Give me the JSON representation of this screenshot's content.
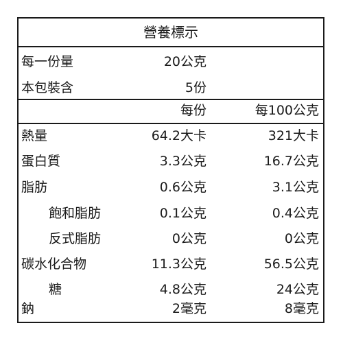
{
  "title": "營養標示",
  "serving": {
    "size_label": "每一份量",
    "size_value": "20公克",
    "count_label": "本包裝含",
    "count_value": "5份"
  },
  "columns": {
    "per_serving": "每份",
    "per_100g": "每100公克"
  },
  "nutrients": [
    {
      "name": "熱量",
      "per_serving": "64.2大卡",
      "per_100g": "321大卡",
      "indent": false
    },
    {
      "name": "蛋白質",
      "per_serving": "3.3公克",
      "per_100g": "16.7公克",
      "indent": false
    },
    {
      "name": "脂肪",
      "per_serving": "0.6公克",
      "per_100g": "3.1公克",
      "indent": false
    },
    {
      "name": "飽和脂肪",
      "per_serving": "0.1公克",
      "per_100g": "0.4公克",
      "indent": true
    },
    {
      "name": "反式脂肪",
      "per_serving": "0公克",
      "per_100g": "0公克",
      "indent": true
    },
    {
      "name": "碳水化合物",
      "per_serving": "11.3公克",
      "per_100g": "56.5公克",
      "indent": false
    },
    {
      "name": "糖",
      "per_serving": "4.8公克",
      "per_100g": "24公克",
      "indent": true
    },
    {
      "name": "鈉",
      "per_serving": "2毫克",
      "per_100g": "8毫克",
      "indent": false
    }
  ]
}
